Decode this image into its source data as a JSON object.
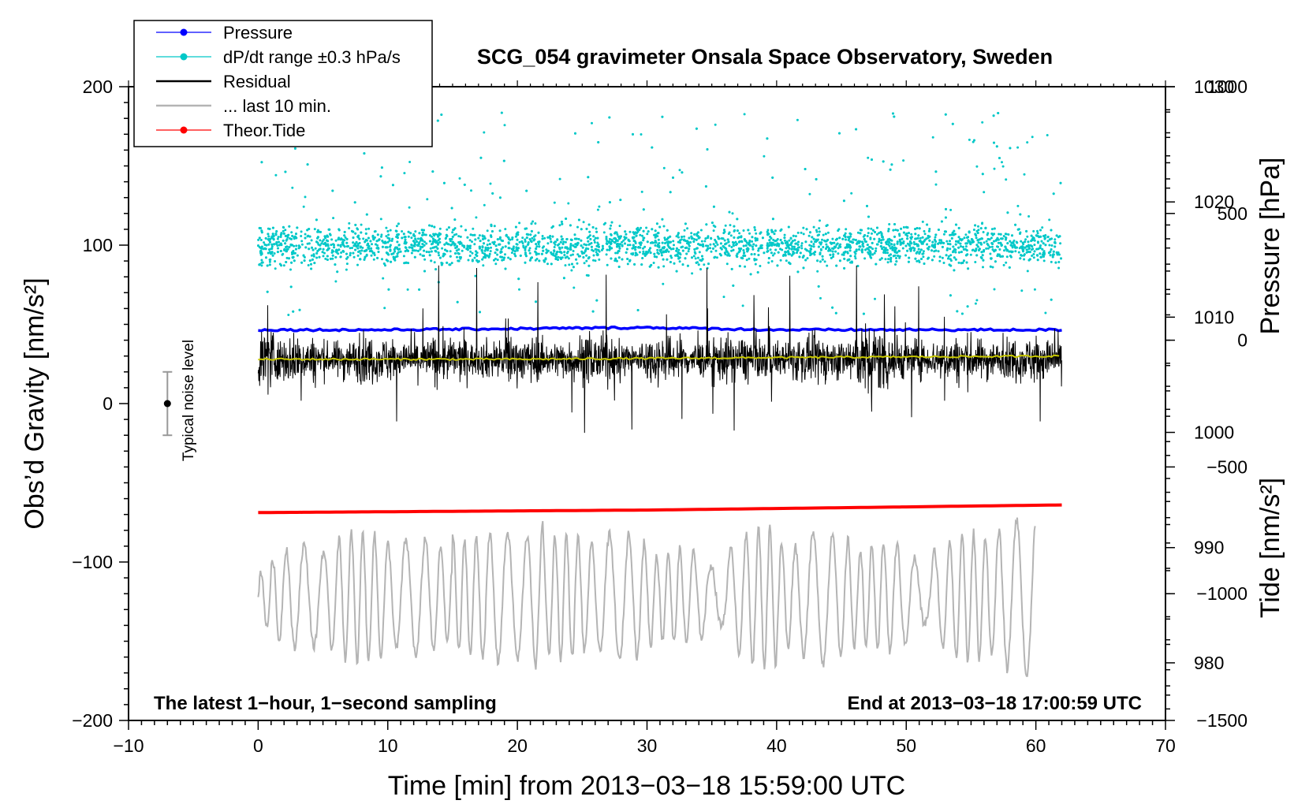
{
  "chart_data": {
    "type": "line",
    "title": "SCG_054 gravimeter Onsala Space Observatory, Sweden",
    "xlabel": "Time [min] from 2013−03−18 15:59:00 UTC",
    "ylabel_left": "Obs’d Gravity [nm/s²]",
    "ylabel_right_top": "Pressure [hPa]",
    "ylabel_right_bottom": "Tide [nm/s²]",
    "xlim": [
      -10,
      70
    ],
    "ylim_left": [
      -200,
      200
    ],
    "pressure_axis_range": [
      975,
      1030
    ],
    "tide_axis_range": [
      -1500,
      1000
    ],
    "x_ticks": [
      -10,
      0,
      10,
      20,
      30,
      40,
      50,
      60,
      70
    ],
    "x_tick_labels": [
      "−10",
      "0",
      "10",
      "20",
      "30",
      "40",
      "50",
      "60",
      "70"
    ],
    "y_left_ticks": [
      -200,
      -100,
      0,
      100,
      200
    ],
    "y_left_tick_labels": [
      "−200",
      "−100",
      "0",
      "100",
      "200"
    ],
    "pressure_ticks": [
      980,
      990,
      1000,
      1010,
      1020,
      1030
    ],
    "pressure_tick_labels": [
      "980",
      "990",
      "1000",
      "1010",
      "1020",
      "1030"
    ],
    "tide_ticks": [
      -1500,
      -1000,
      -500,
      0,
      500,
      1000
    ],
    "tide_tick_labels": [
      "−1500",
      "−1000",
      "−500",
      "0",
      "500",
      "1000"
    ],
    "legend": {
      "location": "top-left",
      "entries": [
        {
          "label": "Pressure",
          "color": "#0000ff",
          "marker": true
        },
        {
          "label": "dP/dt range ±0.3 hPa/s",
          "color": "#00c8c8",
          "marker": true
        },
        {
          "label": "Residual",
          "color": "#000000",
          "marker": false
        },
        {
          "label": "... last 10 min.",
          "color": "#b4b4b4",
          "marker": false
        },
        {
          "label": "Theor.Tide",
          "color": "#ff0000",
          "marker": true
        }
      ]
    },
    "series": [
      {
        "name": "Pressure",
        "axis": "pressure",
        "color": "#0000ff",
        "x": [
          0,
          10,
          20,
          30,
          40,
          50,
          62
        ],
        "values": [
          1008.9,
          1008.9,
          1009.0,
          1009.1,
          1008.9,
          1008.9,
          1008.9
        ]
      },
      {
        "name": "dP/dt range ±0.3 hPa/s",
        "axis": "left",
        "color": "#00c8c8",
        "center": 100,
        "typical_spread": [
          85,
          115
        ],
        "max": 193,
        "min": 10
      },
      {
        "name": "Residual",
        "axis": "left",
        "color": "#000000",
        "center": 28,
        "typical_range": [
          10,
          50
        ],
        "extremes": [
          -30,
          88
        ]
      },
      {
        "name": "Residual mean",
        "axis": "left",
        "color": "#c8c800",
        "x": [
          0,
          20,
          40,
          62
        ],
        "values": [
          28,
          28,
          29,
          30
        ]
      },
      {
        "name": "... last 10 min.",
        "axis": "left",
        "color": "#b4b4b4",
        "x_range": [
          0,
          60
        ],
        "center": -122,
        "range": [
          -175,
          -75
        ]
      },
      {
        "name": "Theor.Tide",
        "axis": "tide",
        "color": "#ff0000",
        "x": [
          0,
          30,
          62
        ],
        "values": [
          -680,
          -670,
          -650
        ]
      }
    ],
    "annotations": {
      "bottom_left": "The latest 1−hour, 1−second sampling",
      "bottom_right": "End at 2013−03−18 17:00:59 UTC",
      "noise_label": "Typical noise level",
      "noise_bar": {
        "x": -7,
        "center": 0,
        "low": -20,
        "high": 20
      }
    },
    "grid": false
  }
}
